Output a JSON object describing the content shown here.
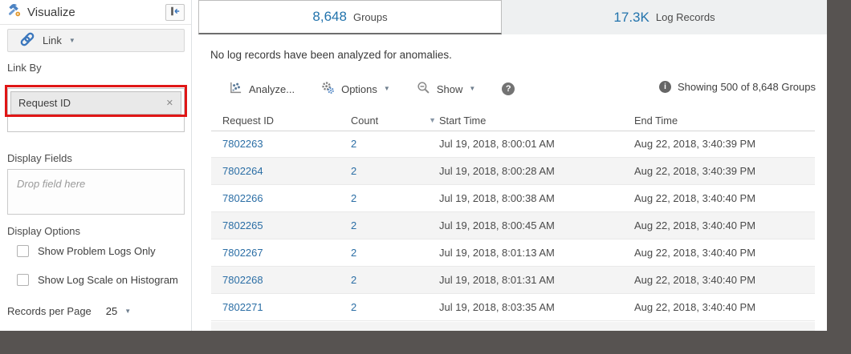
{
  "glyphs": {
    "dropdown": "▼",
    "remove": "✕",
    "help": "?",
    "info": "i",
    "sort_desc": "▼"
  },
  "colors": {
    "accent_blue": "#2273ac",
    "link_blue": "#2b6ea5",
    "highlight_red": "#e01616",
    "dark_bar": "#575351",
    "alt_row": "#f4f4f4",
    "inactive_tab_bg": "#eef0f1"
  },
  "sidebar": {
    "title": "Visualize",
    "link_button": {
      "label": "Link"
    },
    "link_by": {
      "label": "Link By",
      "field": "Request ID"
    },
    "display_fields": {
      "label": "Display Fields",
      "placeholder": "Drop field here"
    },
    "display_options": {
      "label": "Display Options",
      "options": [
        "Show Problem Logs Only",
        "Show Log Scale on Histogram"
      ]
    },
    "records_per_page": {
      "label": "Records per Page",
      "value": "25"
    }
  },
  "tabs": [
    {
      "count": "8,648",
      "label": "Groups",
      "active": true
    },
    {
      "count": "17.3K",
      "label": "Log Records",
      "active": false
    }
  ],
  "main": {
    "message": "No log records have been analyzed for anomalies.",
    "toolbar": {
      "analyze": "Analyze...",
      "options": "Options",
      "show": "Show"
    },
    "showing": "Showing 500 of 8,648 Groups"
  },
  "table": {
    "columns": [
      "Request ID",
      "Count",
      "Start Time",
      "End Time"
    ],
    "sorted_column": "Count",
    "rows": [
      [
        "7802263",
        "2",
        "Jul 19, 2018, 8:00:01 AM",
        "Aug 22, 2018, 3:40:39 PM"
      ],
      [
        "7802264",
        "2",
        "Jul 19, 2018, 8:00:28 AM",
        "Aug 22, 2018, 3:40:39 PM"
      ],
      [
        "7802266",
        "2",
        "Jul 19, 2018, 8:00:38 AM",
        "Aug 22, 2018, 3:40:40 PM"
      ],
      [
        "7802265",
        "2",
        "Jul 19, 2018, 8:00:45 AM",
        "Aug 22, 2018, 3:40:40 PM"
      ],
      [
        "7802267",
        "2",
        "Jul 19, 2018, 8:01:13 AM",
        "Aug 22, 2018, 3:40:40 PM"
      ],
      [
        "7802268",
        "2",
        "Jul 19, 2018, 8:01:31 AM",
        "Aug 22, 2018, 3:40:40 PM"
      ],
      [
        "7802271",
        "2",
        "Jul 19, 2018, 8:03:35 AM",
        "Aug 22, 2018, 3:40:40 PM"
      ]
    ]
  }
}
